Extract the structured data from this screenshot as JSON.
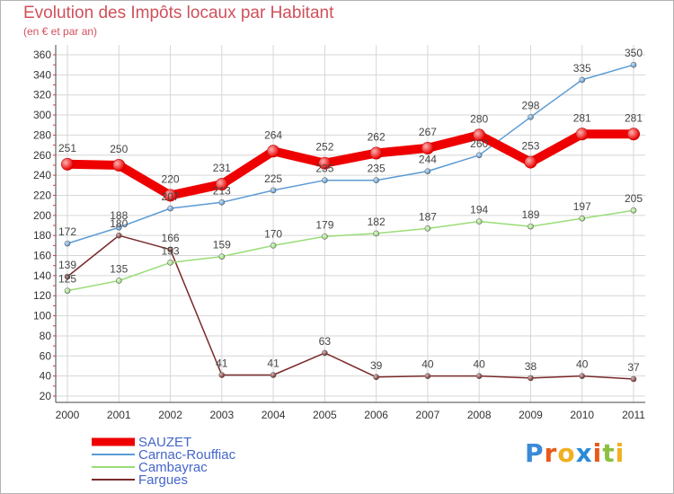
{
  "header": {
    "title": "Evolution des Impôts locaux par Habitant",
    "subtitle": "(en € et par an)"
  },
  "logo": {
    "text": "Proxiti",
    "letters": [
      "P",
      "r",
      "o",
      "x",
      "i",
      "t",
      "i"
    ],
    "letter_colors": [
      "#3a8ad8",
      "#e85a1a",
      "#f0b020",
      "#2a8ad8",
      "#e85a1a",
      "#8ac040",
      "#f0b020"
    ]
  },
  "chart_data": {
    "type": "line",
    "title": "Evolution des Impôts locaux par Habitant",
    "subtitle": "(en € et par an)",
    "x": [
      "2000",
      "2001",
      "2002",
      "2003",
      "2004",
      "2005",
      "2006",
      "2007",
      "2008",
      "2009",
      "2010",
      "2011"
    ],
    "ylim": [
      20,
      360
    ],
    "yticks": [
      20,
      40,
      60,
      80,
      100,
      120,
      140,
      160,
      180,
      200,
      220,
      240,
      260,
      280,
      300,
      320,
      340,
      360
    ],
    "grid": true,
    "legend_position": "bottom-left",
    "series": [
      {
        "name": "SAUZET",
        "color": "#ee0000",
        "values": [
          251,
          250,
          220,
          231,
          264,
          252,
          262,
          267,
          280,
          253,
          281,
          281
        ]
      },
      {
        "name": "Carnac-Rouffiac",
        "color": "#5b9bd5",
        "values": [
          172,
          188,
          207,
          213,
          225,
          235,
          235,
          244,
          260,
          298,
          335,
          350
        ]
      },
      {
        "name": "Cambayrac",
        "color": "#99dd77",
        "values": [
          125,
          135,
          153,
          159,
          170,
          179,
          182,
          187,
          194,
          189,
          197,
          205
        ]
      },
      {
        "name": "Fargues",
        "color": "#7a2a2a",
        "values": [
          139,
          180,
          166,
          41,
          41,
          63,
          39,
          40,
          40,
          38,
          40,
          37
        ]
      }
    ]
  }
}
